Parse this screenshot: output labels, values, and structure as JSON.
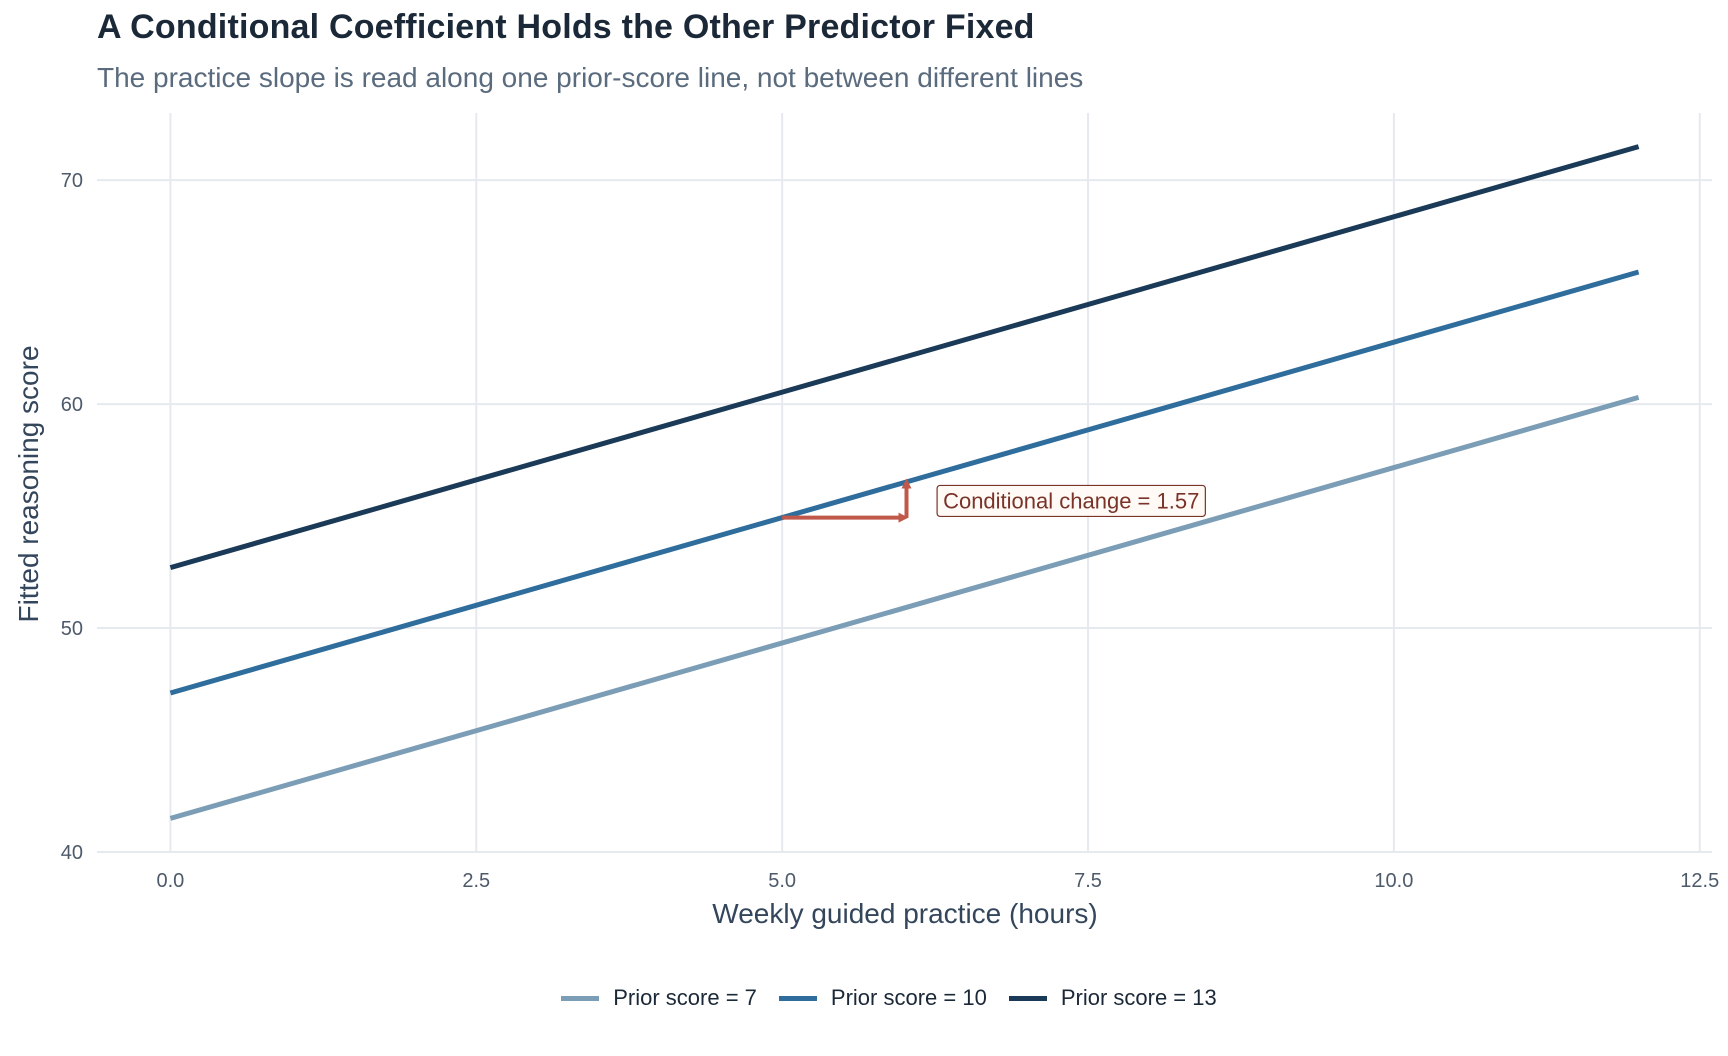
{
  "title": "A Conditional Coefficient Holds the Other Predictor Fixed",
  "subtitle": "The practice slope is read along one prior-score line, not between different lines",
  "chart_data": {
    "type": "line",
    "xlabel": "Weekly guided practice (hours)",
    "ylabel": "Fitted reasoning score",
    "xlim": [
      -0.6,
      12.6
    ],
    "ylim": [
      40,
      73
    ],
    "xticks": [
      "0.0",
      "2.5",
      "5.0",
      "7.5",
      "10.0",
      "12.5"
    ],
    "yticks": [
      "40",
      "50",
      "60",
      "70"
    ],
    "grid": true,
    "legend_position": "bottom",
    "series": [
      {
        "name": "Prior score = 7",
        "color": "#7c9db6",
        "x": [
          0,
          12
        ],
        "y": [
          41.5,
          60.3
        ]
      },
      {
        "name": "Prior score = 10",
        "color": "#2f6d9c",
        "x": [
          0,
          12
        ],
        "y": [
          47.1,
          65.9
        ]
      },
      {
        "name": "Prior score = 13",
        "color": "#1b3a57",
        "x": [
          0,
          12
        ],
        "y": [
          52.7,
          71.5
        ]
      }
    ],
    "annotation": {
      "text": "Conditional change = 1.57",
      "color": "#c0594a",
      "x_from": 5,
      "x_to": 6,
      "y_from": 54.93,
      "y_to": 56.5,
      "label_x": 6.25,
      "label_y": 55.7
    }
  }
}
